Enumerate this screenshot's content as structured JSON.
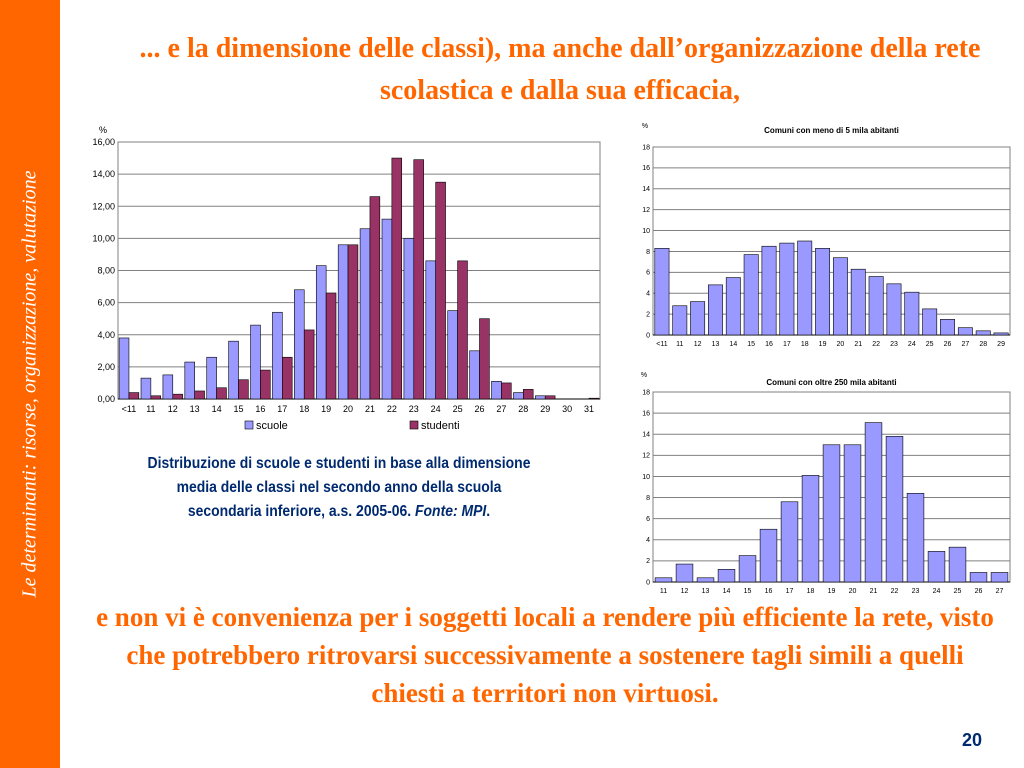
{
  "sidebar": {
    "label": "Le determinanti: risorse, organizzazione, valutazione"
  },
  "title": "... e la dimensione delle classi), ma anche dall’organizzazione della rete scolastica e dalla sua efficacia,",
  "caption": {
    "text": "Distribuzione di scuole e studenti in base alla dimensione media delle classi nel secondo anno della scuola secondaria inferiore, a.s. 2005-06. ",
    "source": "Fonte: MPI",
    "end": "."
  },
  "bottom_text": "e non vi è convenienza per i soggetti locali a rendere più efficiente la rete, visto che potrebbero ritrovarsi successivamente a sostenere tagli simili a quelli chiesti a territori non virtuosi.",
  "page_number": "20",
  "colors": {
    "accent": "#ff6600",
    "scuole": "#9999ff",
    "studenti": "#993366",
    "caption": "#002a70"
  },
  "chart_data": [
    {
      "type": "bar",
      "title": "",
      "ylabel": "%",
      "xlabel": "",
      "ylim": [
        0,
        16
      ],
      "yticks": [
        "0,00",
        "2,00",
        "4,00",
        "6,00",
        "8,00",
        "10,00",
        "12,00",
        "14,00",
        "16,00"
      ],
      "grid": true,
      "legend": "bottom",
      "categories": [
        "<11",
        "11",
        "12",
        "13",
        "14",
        "15",
        "16",
        "17",
        "18",
        "19",
        "20",
        "21",
        "22",
        "23",
        "24",
        "25",
        "26",
        "27",
        "28",
        "29",
        "30",
        "31"
      ],
      "series": [
        {
          "name": "scuole",
          "values": [
            3.8,
            1.3,
            1.5,
            2.3,
            2.6,
            3.6,
            4.6,
            5.4,
            6.8,
            8.3,
            9.6,
            10.6,
            11.2,
            10.0,
            8.6,
            5.5,
            3.0,
            1.1,
            0.4,
            0.2,
            0.0,
            0.0
          ]
        },
        {
          "name": "studenti",
          "values": [
            0.4,
            0.2,
            0.3,
            0.5,
            0.7,
            1.2,
            1.8,
            2.6,
            4.3,
            6.6,
            9.6,
            12.6,
            15.0,
            14.9,
            13.5,
            8.6,
            5.0,
            1.0,
            0.6,
            0.2,
            0.0,
            0.05
          ]
        }
      ]
    },
    {
      "type": "bar",
      "title": "Comuni con meno di 5 mila abitanti",
      "ylabel": "%",
      "xlabel": "",
      "ylim": [
        0,
        18
      ],
      "yticks": [
        "0",
        "2",
        "4",
        "6",
        "8",
        "10",
        "12",
        "14",
        "16",
        "18"
      ],
      "grid": true,
      "categories": [
        "<11",
        "11",
        "12",
        "13",
        "14",
        "15",
        "16",
        "17",
        "18",
        "19",
        "20",
        "21",
        "22",
        "23",
        "24",
        "25",
        "26",
        "27",
        "28",
        "29"
      ],
      "series": [
        {
          "values": [
            8.3,
            2.8,
            3.2,
            4.8,
            5.5,
            7.7,
            8.5,
            8.8,
            9.0,
            8.3,
            7.4,
            6.3,
            5.6,
            4.9,
            4.1,
            2.5,
            1.5,
            0.7,
            0.4,
            0.2
          ]
        }
      ]
    },
    {
      "type": "bar",
      "title": "Comuni con oltre 250 mila abitanti",
      "ylabel": "%",
      "xlabel": "",
      "ylim": [
        0,
        18
      ],
      "yticks": [
        "0",
        "2",
        "4",
        "6",
        "8",
        "10",
        "12",
        "14",
        "16",
        "18"
      ],
      "grid": true,
      "categories": [
        "11",
        "12",
        "13",
        "14",
        "15",
        "16",
        "17",
        "18",
        "19",
        "20",
        "21",
        "22",
        "23",
        "24",
        "25",
        "26",
        "27"
      ],
      "series": [
        {
          "values": [
            0.4,
            1.7,
            0.4,
            1.2,
            2.5,
            5.0,
            7.6,
            10.1,
            13.0,
            13.0,
            15.1,
            13.8,
            8.4,
            2.9,
            3.3,
            0.9,
            0.9
          ]
        }
      ]
    }
  ]
}
